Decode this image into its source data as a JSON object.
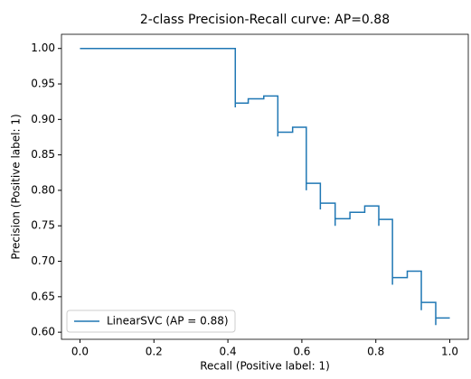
{
  "chart_data": {
    "type": "line",
    "title": "2-class Precision-Recall curve: AP=0.88",
    "x_label": "Recall (Positive label: 1)",
    "y_label": "Precision (Positive label: 1)",
    "xlim": [
      -0.05,
      1.05
    ],
    "ylim": [
      0.59,
      1.02
    ],
    "xticks": [
      {
        "value": 0,
        "label": "0.0"
      },
      {
        "value": 0.2,
        "label": "0.2"
      },
      {
        "value": 0.4,
        "label": "0.4"
      },
      {
        "value": 0.6,
        "label": "0.6"
      },
      {
        "value": 0.8,
        "label": "0.8"
      },
      {
        "value": 1,
        "label": "1.0"
      }
    ],
    "yticks": [
      {
        "value": 0.6,
        "label": "0.60"
      },
      {
        "value": 0.65,
        "label": "0.65"
      },
      {
        "value": 0.7,
        "label": "0.70"
      },
      {
        "value": 0.75,
        "label": "0.75"
      },
      {
        "value": 0.8,
        "label": "0.80"
      },
      {
        "value": 0.85,
        "label": "0.85"
      },
      {
        "value": 0.9,
        "label": "0.90"
      },
      {
        "value": 0.95,
        "label": "0.95"
      },
      {
        "value": 1,
        "label": "1.00"
      }
    ],
    "legend": "lower left",
    "grid": false,
    "series": [
      {
        "name": "LinearSVC (AP = 0.88)",
        "color": "#1f77b4",
        "x": [
          0,
          0.42,
          0.42,
          0.42,
          0.455,
          0.455,
          0.497,
          0.497,
          0.535,
          0.535,
          0.535,
          0.575,
          0.575,
          0.612,
          0.612,
          0.612,
          0.65,
          0.65,
          0.65,
          0.69,
          0.69,
          0.69,
          0.73,
          0.73,
          0.77,
          0.77,
          0.808,
          0.808,
          0.808,
          0.845,
          0.845,
          0.845,
          0.885,
          0.885,
          0.923,
          0.923,
          0.923,
          0.962,
          0.962,
          0.962,
          1
        ],
        "values": [
          1,
          1,
          0.917,
          0.923,
          0.923,
          0.929,
          0.929,
          0.933,
          0.933,
          0.876,
          0.882,
          0.882,
          0.889,
          0.889,
          0.8,
          0.81,
          0.81,
          0.773,
          0.782,
          0.782,
          0.75,
          0.76,
          0.76,
          0.769,
          0.769,
          0.778,
          0.778,
          0.75,
          0.759,
          0.759,
          0.667,
          0.677,
          0.677,
          0.686,
          0.686,
          0.631,
          0.642,
          0.642,
          0.61,
          0.62,
          0.62
        ]
      }
    ]
  }
}
